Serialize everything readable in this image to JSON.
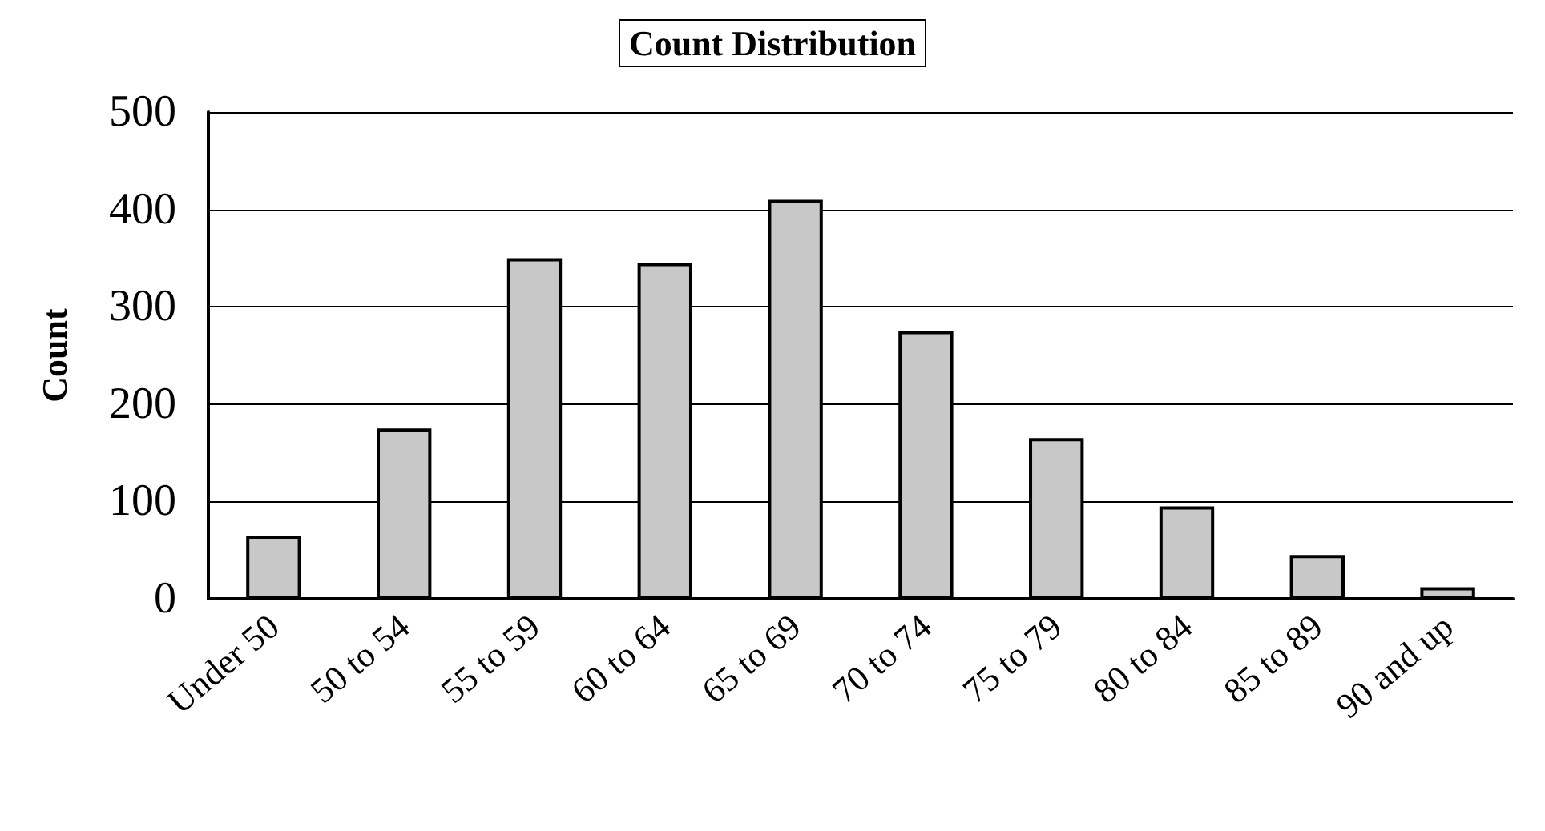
{
  "chart_data": {
    "type": "bar",
    "title": "Count Distribution",
    "ylabel": "Count",
    "categories": [
      "Under 50",
      "50 to 54",
      "55 to 59",
      "60 to 64",
      "65 to 69",
      "70 to 74",
      "75 to 79",
      "80 to 84",
      "85 to 89",
      "90 and up"
    ],
    "values": [
      65,
      175,
      350,
      345,
      410,
      275,
      165,
      95,
      45,
      12
    ],
    "color": "#c8c8c8",
    "ylim": [
      0,
      500
    ],
    "yticks": [
      0,
      100,
      200,
      300,
      400,
      500
    ],
    "grid": "y"
  }
}
